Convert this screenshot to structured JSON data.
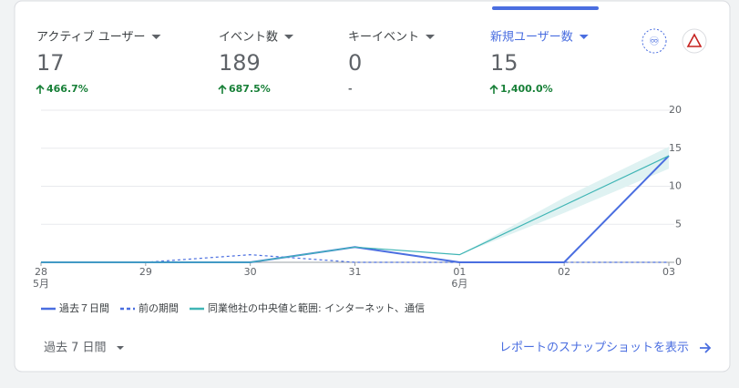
{
  "metrics": [
    {
      "label": "アクティブ ユーザー",
      "value": 17,
      "change": "466.7%"
    },
    {
      "label": "イベント数",
      "value": 189,
      "change": "687.5%"
    },
    {
      "label": "キーイベント",
      "value": 0,
      "change": "-"
    },
    {
      "label": "新規ユーザー数",
      "value": 15,
      "change": "1,400.0%"
    }
  ],
  "chart_data": {
    "type": "line",
    "categories": [
      "28",
      "29",
      "30",
      "31",
      "01",
      "02",
      "03"
    ],
    "month_labels": [
      "5月",
      null,
      null,
      null,
      "6月",
      null,
      null
    ],
    "series": [
      {
        "name": "過去７日間",
        "color": "#4a6ee0",
        "style": "solid",
        "values": [
          0,
          0,
          0,
          2,
          0,
          0,
          14
        ]
      },
      {
        "name": "前の期間",
        "color": "#4a6ee0",
        "style": "dashed",
        "values": [
          0,
          0,
          1,
          0,
          0,
          0,
          0
        ]
      },
      {
        "name": "同業他社の中央値と範囲: インターネット、通信",
        "color": "#3fb5b5",
        "style": "solid",
        "values": [
          0,
          0,
          0,
          2,
          1,
          7.5,
          14
        ],
        "range_low": [
          null,
          null,
          null,
          null,
          1,
          6.5,
          12.3
        ],
        "range_high": [
          null,
          null,
          null,
          null,
          1,
          8.5,
          15.2
        ]
      }
    ],
    "ylim": [
      0,
      20
    ],
    "yticks": [
      0,
      5,
      10,
      15,
      20
    ],
    "grid": true
  },
  "footer": {
    "date_range": "過去 7 日間",
    "link": "レポートのスナップショットを表示"
  }
}
